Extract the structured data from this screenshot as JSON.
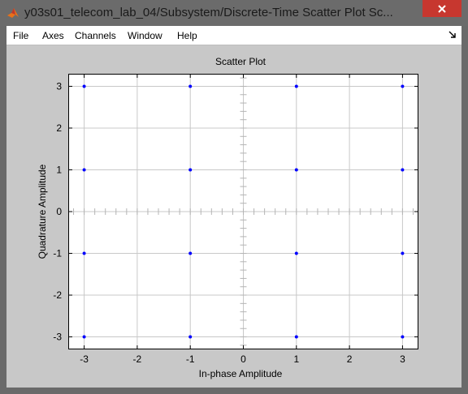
{
  "window": {
    "title": "y03s01_telecom_lab_04/Subsystem/Discrete-Time Scatter Plot Sc...",
    "app_icon": "matlab-icon",
    "close_icon": "close-icon"
  },
  "menu": {
    "items": [
      "File",
      "Axes",
      "Channels",
      "Window",
      "Help"
    ],
    "dock_icon": "dock-arrow-icon"
  },
  "chart_data": {
    "type": "scatter",
    "title": "Scatter Plot",
    "xlabel": "In-phase Amplitude",
    "ylabel": "Quadrature Amplitude",
    "xlim": [
      -3.3,
      3.3
    ],
    "ylim": [
      -3.3,
      3.3
    ],
    "xticks": [
      -3,
      -2,
      -1,
      0,
      1,
      2,
      3
    ],
    "yticks": [
      -3,
      -2,
      -1,
      0,
      1,
      2,
      3
    ],
    "grid": true,
    "marker_color": "#0000ff",
    "points": [
      [
        -3,
        3
      ],
      [
        -1,
        3
      ],
      [
        1,
        3
      ],
      [
        3,
        3
      ],
      [
        -3,
        1
      ],
      [
        -1,
        1
      ],
      [
        1,
        1
      ],
      [
        3,
        1
      ],
      [
        -3,
        -1
      ],
      [
        -1,
        -1
      ],
      [
        1,
        -1
      ],
      [
        3,
        -1
      ],
      [
        -3,
        -3
      ],
      [
        -1,
        -3
      ],
      [
        1,
        -3
      ],
      [
        3,
        -3
      ]
    ]
  }
}
